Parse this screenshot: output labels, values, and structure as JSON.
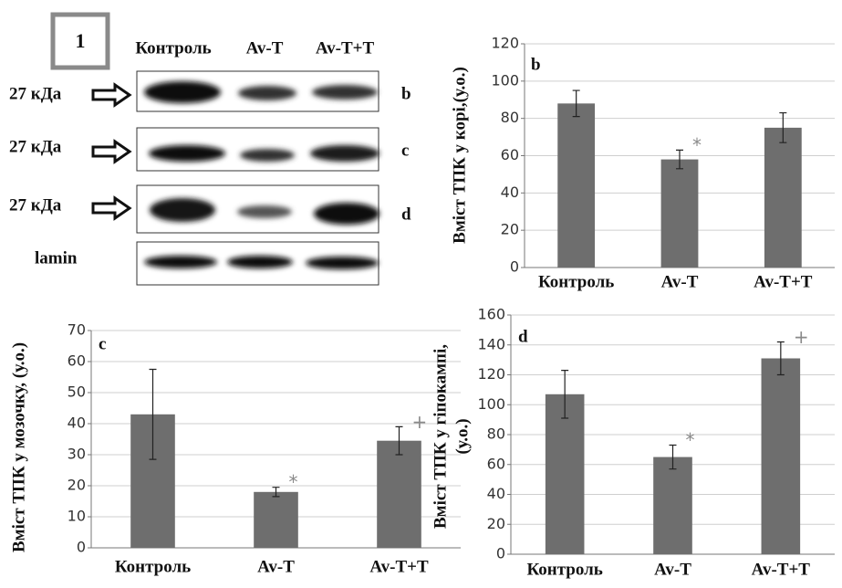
{
  "blot": {
    "figure_number": "1",
    "columns": [
      "Контроль",
      "Av-T",
      "Av-T+T"
    ],
    "rows": [
      {
        "label": "27 кДа",
        "panel": "b"
      },
      {
        "label": "27 кДа",
        "panel": "c"
      },
      {
        "label": "27 кДа",
        "panel": "d"
      }
    ],
    "loading_control": "lamin"
  },
  "chart_data": [
    {
      "type": "bar",
      "title": "b",
      "ylabel": [
        "Вміст  ТПК у корі,(у.о.)"
      ],
      "categories": [
        "Контроль",
        "Av-T",
        "Av-T+T"
      ],
      "values": [
        88,
        58,
        75
      ],
      "errors": [
        7,
        5,
        8
      ],
      "markers": [
        null,
        "*",
        null
      ],
      "color": "#6e6e6e",
      "ylim": [
        0,
        120
      ],
      "yticks": [
        0,
        20,
        40,
        60,
        80,
        100,
        120
      ],
      "grid": true
    },
    {
      "type": "bar",
      "title": "c",
      "ylabel": [
        "Вміст  ТПК у мозочку, (у.о.)"
      ],
      "categories": [
        "Контроль",
        "Av-T",
        "Av-T+T"
      ],
      "values": [
        43,
        18,
        34.5
      ],
      "errors": [
        14.5,
        1.5,
        4.5
      ],
      "markers": [
        null,
        "*",
        "+"
      ],
      "color": "#6e6e6e",
      "ylim": [
        0,
        70
      ],
      "yticks": [
        0,
        10,
        20,
        30,
        40,
        50,
        60,
        70
      ],
      "grid": true
    },
    {
      "type": "bar",
      "title": "d",
      "ylabel": [
        "Вміст  ТПК у гіпокампі,",
        "(у.о.)"
      ],
      "categories": [
        "Контроль",
        "Av-T",
        "Av-T+T"
      ],
      "values": [
        107,
        65,
        131
      ],
      "errors": [
        16,
        8,
        11
      ],
      "markers": [
        null,
        "*",
        "+"
      ],
      "color": "#6e6e6e",
      "ylim": [
        0,
        160
      ],
      "yticks": [
        0,
        20,
        40,
        60,
        80,
        100,
        120,
        140,
        160
      ],
      "grid": true
    }
  ]
}
